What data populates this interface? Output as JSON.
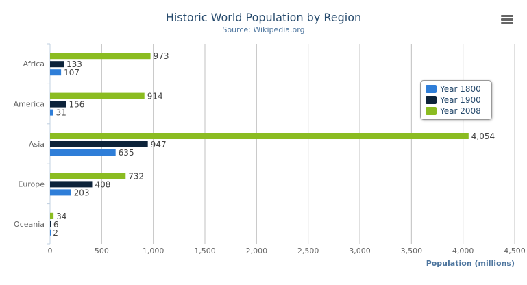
{
  "chart_data": {
    "type": "bar",
    "title": "Historic World Population by Region",
    "subtitle": "Source: Wikipedia.org",
    "categories": [
      "Africa",
      "America",
      "Asia",
      "Europe",
      "Oceania"
    ],
    "series": [
      {
        "name": "Year 1800",
        "color": "#2f7ed8",
        "values": [
          107,
          31,
          635,
          203,
          2
        ]
      },
      {
        "name": "Year 1900",
        "color": "#0d233a",
        "values": [
          133,
          156,
          947,
          408,
          6
        ]
      },
      {
        "name": "Year 2008",
        "color": "#8bbc21",
        "values": [
          973,
          914,
          4054,
          732,
          34
        ]
      }
    ],
    "xlabel": "",
    "ylabel": "Population (millions)",
    "ylim": [
      0,
      4500
    ],
    "yticks": [
      "0",
      "500",
      "1,000",
      "1,500",
      "2,000",
      "2,500",
      "3,000",
      "3,500",
      "4,000",
      "4,500"
    ],
    "grid": true,
    "legend": "top-right",
    "data_labels": true
  },
  "menu_icon": "hamburger-menu-icon"
}
